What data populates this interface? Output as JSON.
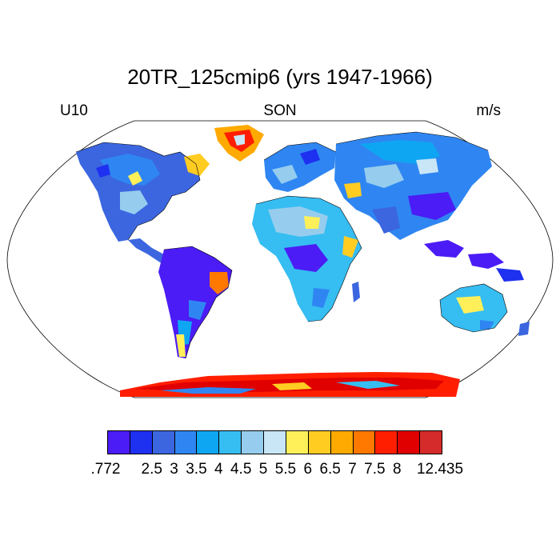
{
  "title": "20TR_125cmip6 (yrs 1947-1966)",
  "left_label": "U10",
  "center_label": "SON",
  "right_label": "m/s",
  "map": {
    "projection": "Robinson",
    "variable": "U10",
    "season": "SON",
    "units": "m/s"
  },
  "colorbar": {
    "colors": [
      "#4b1cf5",
      "#1e30f0",
      "#3b66e0",
      "#2f86f2",
      "#0ea6f2",
      "#36bdf2",
      "#96cdee",
      "#c9e6f7",
      "#fff05a",
      "#ffcc22",
      "#ffaa00",
      "#ff7800",
      "#ff1e00",
      "#e00000",
      "#d62b2b"
    ],
    "tick_labels": [
      ".772",
      "2.5",
      "3",
      "3.5",
      "4",
      "4.5",
      "5",
      "5.5",
      "6",
      "6.5",
      "7",
      "7.5",
      "8",
      "12.435"
    ]
  }
}
